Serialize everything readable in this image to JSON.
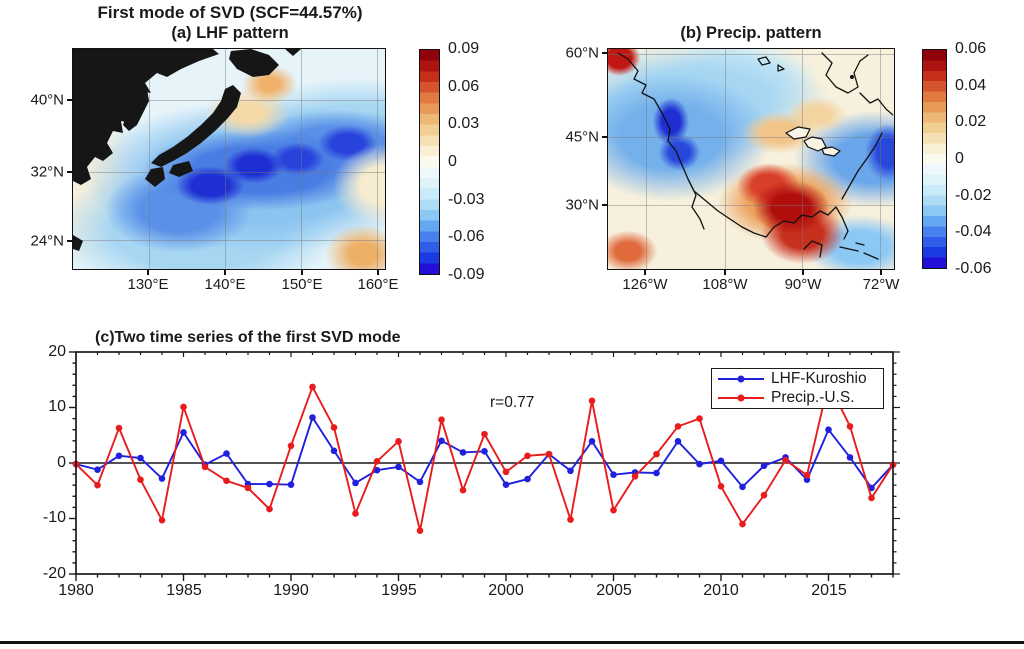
{
  "figure": {
    "title": "First mode of SVD (SCF=44.57%)"
  },
  "colors": {
    "lhf_line": "#2020dd",
    "precip_line": "#e81c1c",
    "land": "#161616",
    "axis": "#1a1a1a",
    "colorbar_top": "#8f020b",
    "colorbar_bottom": "#2310d8"
  },
  "panel_a": {
    "title": "(a) LHF pattern",
    "lat_ticks": [
      "40°N",
      "32°N",
      "24°N"
    ],
    "lon_ticks": [
      "130°E",
      "140°E",
      "150°E",
      "160°E"
    ],
    "colorbar_ticks": [
      "0.09",
      "0.06",
      "0.03",
      "0",
      "-0.03",
      "-0.06",
      "-0.09"
    ],
    "description": "negative (blue) LHF anomaly band along the Kuroshio Extension south and east of Japan"
  },
  "panel_b": {
    "title": "(b) Precip. pattern",
    "lat_ticks": [
      "60°N",
      "45°N",
      "30°N"
    ],
    "lon_ticks": [
      "126°W",
      "108°W",
      "90°W",
      "72°W"
    ],
    "colorbar_ticks": [
      "0.06",
      "0.04",
      "0.02",
      "0",
      "-0.02",
      "-0.04",
      "-0.06"
    ],
    "description": "positive (red) precipitation anomaly over the southern U.S./Gulf of Mexico, negative (blue) over the Pacific Northwest and U.S. East Coast"
  },
  "chart_data": {
    "type": "line",
    "title": "(c)Two time series of the first SVD mode",
    "annotation": "r=0.77",
    "xlim": [
      1980,
      2018
    ],
    "ylim": [
      -20,
      20
    ],
    "grid": false,
    "legend_position": "top-right",
    "x_tick_labels": [
      "1980",
      "1985",
      "1990",
      "1995",
      "2000",
      "2005",
      "2010",
      "2015"
    ],
    "x_tick_years": [
      1980,
      1985,
      1990,
      1995,
      2000,
      2005,
      2010,
      2015
    ],
    "y_tick_labels": [
      "20",
      "10",
      "0",
      "-10",
      "-20"
    ],
    "y_tick_values": [
      20,
      10,
      0,
      -10,
      -20
    ],
    "x": [
      1980,
      1981,
      1982,
      1983,
      1984,
      1985,
      1986,
      1987,
      1988,
      1989,
      1990,
      1991,
      1992,
      1993,
      1994,
      1995,
      1996,
      1997,
      1998,
      1999,
      2000,
      2001,
      2002,
      2003,
      2004,
      2005,
      2006,
      2007,
      2008,
      2009,
      2010,
      2011,
      2012,
      2013,
      2014,
      2015,
      2016,
      2017,
      2018
    ],
    "series": [
      {
        "name": "LHF-Kuroshio",
        "color": "#2020dd",
        "values": [
          -0.2,
          -1.2,
          1.3,
          0.9,
          -2.8,
          5.5,
          -0.3,
          1.7,
          -3.8,
          -3.8,
          -3.9,
          8.2,
          2.2,
          -3.6,
          -1.3,
          -0.7,
          -3.4,
          4.0,
          1.9,
          2.1,
          -3.9,
          -2.9,
          1.6,
          -1.4,
          3.9,
          -2.1,
          -1.7,
          -1.8,
          3.9,
          -0.2,
          0.4,
          -4.3,
          -0.5,
          1.0,
          -3.0,
          6.0,
          1.0,
          -4.5,
          -0.3
        ]
      },
      {
        "name": "Precip.-U.S.",
        "color": "#e81c1c",
        "values": [
          -0.2,
          -4.0,
          6.3,
          -3.0,
          -10.3,
          10.1,
          -0.7,
          -3.2,
          -4.5,
          -8.3,
          3.1,
          13.7,
          6.4,
          -9.1,
          0.3,
          3.9,
          -12.2,
          7.8,
          -4.9,
          5.2,
          -1.6,
          1.3,
          1.6,
          -10.2,
          11.2,
          -8.5,
          -2.4,
          1.6,
          6.6,
          8.0,
          -4.2,
          -11.0,
          -5.8,
          0.5,
          -2.2,
          14.5,
          6.6,
          -6.3,
          -0.3
        ]
      }
    ]
  }
}
